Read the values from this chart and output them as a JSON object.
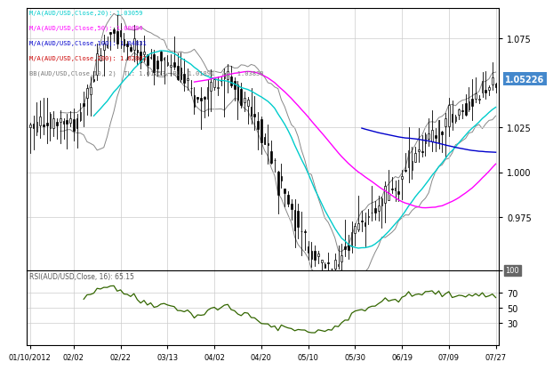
{
  "xlabel_dates": [
    "01/10/2012",
    "02/02",
    "02/22",
    "03/13",
    "04/02",
    "04/20",
    "05/10",
    "05/30",
    "06/19",
    "07/09",
    "07/27"
  ],
  "ylabel_main": [
    0.975,
    1.0,
    1.025,
    1.075
  ],
  "ylabel_rsi": [
    30,
    50,
    70,
    100
  ],
  "price_label": "1.05226",
  "legend_lines": [
    {
      "text": "M/A(AUD/USD,Close,20): 1.03059",
      "color": "#00CCCC"
    },
    {
      "text": "M/A(AUD/USD,Close,50): 1.00084",
      "color": "#FF00FF"
    },
    {
      "text": "M/A(AUD/USD,Close,100): 1.04831",
      "color": "#0000CC"
    },
    {
      "text": "M/A(AUD/USD,Close,200): 1.02803",
      "color": "#CC0000"
    },
    {
      "text": "BB(AUD/USD,Close,10, 2)  TL: 1.01753, BL: 1.01891  AL: 1.03830",
      "color": "#777777"
    }
  ],
  "rsi_label": "RSI(AUD/USD,Close, 16): 65.15",
  "bg_color": "#FFFFFF",
  "grid_color": "#CCCCCC",
  "ma20_color": "#00CCCC",
  "ma50_color": "#FF00FF",
  "ma100_color": "#0000CC",
  "ma200_color": "#CC0000",
  "bb_color": "#888888",
  "rsi_color": "#336600",
  "n_candles": 140,
  "ylim_main": [
    0.945,
    1.092
  ],
  "ylim_rsi": [
    0,
    100
  ],
  "price_box_color": "#4488CC"
}
